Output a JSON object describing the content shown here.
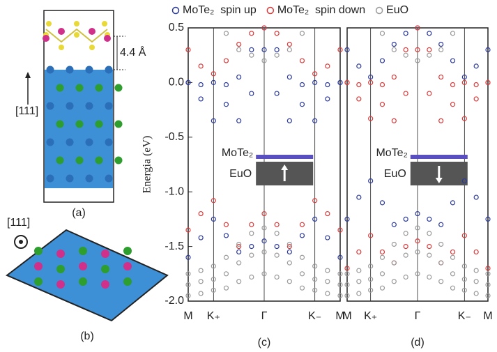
{
  "figure": {
    "distance": "4.4 Å",
    "direction_a": "[111]",
    "direction_b": "[111]",
    "label_a": "(a)",
    "label_b": "(b)"
  },
  "chart_data": [
    {
      "type": "scatter",
      "title": "(c)",
      "ylabel": "Energia (eV)",
      "x": [
        0,
        0.5,
        1,
        1.5,
        2,
        2.5,
        3,
        3.5,
        4,
        4.5,
        5,
        5.5,
        6
      ],
      "xlim": [
        0,
        6
      ],
      "xticks": [
        {
          "value": 0,
          "label": "M"
        },
        {
          "value": 1,
          "label": "K₊"
        },
        {
          "value": 3,
          "label": "Γ"
        },
        {
          "value": 5,
          "label": "K₋"
        },
        {
          "value": 6,
          "label": "M"
        }
      ],
      "ylim": [
        -2.0,
        0.5
      ],
      "yticks": [
        {
          "value": -2.0,
          "label": "-2.0"
        },
        -1.5,
        {
          "value": -1.0,
          "label": "-1.0"
        },
        -0.5,
        {
          "value": 0.0,
          "label": "0.0"
        },
        0.5
      ],
      "inset_labels": [
        "MoTe₂",
        "EuO"
      ],
      "inset_spin": "up",
      "series": [
        {
          "name": "MoTe₂  spin up",
          "color": "#2b3a9b",
          "values": [
            [
              -1.6,
              -1.42,
              -1.25,
              -1.4,
              -1.55,
              -1.5,
              -1.45,
              -1.5,
              -1.55,
              -1.4,
              -1.25,
              -1.42,
              -1.6
            ],
            [
              0.0,
              -0.15,
              -0.35,
              -0.2,
              -0.35,
              -0.1,
              0.3,
              -0.1,
              -0.35,
              -0.2,
              -0.35,
              -0.15,
              0.0
            ],
            [
              0.0,
              -0.02,
              0.0,
              -0.02,
              0.05,
              0.3,
              0.5,
              0.3,
              0.05,
              -0.02,
              0.0,
              -0.02,
              0.0
            ]
          ]
        },
        {
          "name": "MoTe₂  spin down",
          "color": "#d93a3a",
          "values": [
            [
              -1.35,
              -1.2,
              -1.08,
              -1.3,
              -1.5,
              -1.3,
              -1.2,
              -1.3,
              -1.5,
              -1.3,
              -1.08,
              -1.2,
              -1.35
            ],
            [
              0.3,
              0.15,
              0.08,
              0.2,
              0.35,
              0.45,
              0.5,
              0.45,
              0.35,
              0.2,
              0.08,
              0.15,
              0.3
            ]
          ]
        },
        {
          "name": "EuO",
          "color": "#9a9a9a",
          "values": [
            [
              -1.75,
              -1.72,
              -1.68,
              -1.6,
              -1.48,
              -1.38,
              -1.33,
              -1.38,
              -1.48,
              -1.6,
              -1.68,
              -1.72,
              -1.75
            ],
            [
              -1.85,
              -1.82,
              -1.8,
              -1.75,
              -1.65,
              -1.58,
              -1.55,
              -1.58,
              -1.65,
              -1.75,
              -1.8,
              -1.82,
              -1.85
            ],
            [
              -1.95,
              -1.93,
              -1.9,
              -1.88,
              -1.82,
              -1.78,
              -1.75,
              -1.78,
              -1.82,
              -1.88,
              -1.9,
              -1.93,
              -1.95
            ],
            [
              null,
              null,
              null,
              0.45,
              0.3,
              0.25,
              0.2,
              0.25,
              0.3,
              0.45,
              null,
              null,
              null
            ]
          ]
        }
      ]
    },
    {
      "type": "scatter",
      "title": "(d)",
      "x": [
        0,
        0.5,
        1,
        1.5,
        2,
        2.5,
        3,
        3.5,
        4,
        4.5,
        5,
        5.5,
        6
      ],
      "xlim": [
        0,
        6
      ],
      "xticks": [
        {
          "value": 0,
          "label": "M"
        },
        {
          "value": 1,
          "label": "K₊"
        },
        {
          "value": 3,
          "label": "Γ"
        },
        {
          "value": 5,
          "label": "K₋"
        },
        {
          "value": 6,
          "label": "M"
        }
      ],
      "ylim": [
        -2.0,
        0.5
      ],
      "inset_labels": [
        "MoTe₂",
        "EuO"
      ],
      "inset_spin": "down",
      "series": [
        {
          "color": "#2b3a9b",
          "values": [
            [
              -1.25,
              -1.05,
              -0.9,
              -1.1,
              -1.3,
              -1.25,
              -1.2,
              -1.25,
              -1.3,
              -1.1,
              -0.9,
              -1.05,
              -1.25
            ],
            [
              0.3,
              0.15,
              0.05,
              0.2,
              0.35,
              0.45,
              0.5,
              0.45,
              0.35,
              0.2,
              0.05,
              0.15,
              0.3
            ]
          ]
        },
        {
          "color": "#d93a3a",
          "values": [
            [
              -1.7,
              -1.55,
              -1.4,
              -1.55,
              -1.65,
              -1.5,
              -1.45,
              -1.5,
              -1.65,
              -1.55,
              -1.4,
              -1.55,
              -1.7
            ],
            [
              0.0,
              -0.15,
              -0.33,
              -0.2,
              -0.35,
              -0.1,
              0.3,
              -0.1,
              -0.35,
              -0.2,
              -0.33,
              -0.15,
              0.0
            ],
            [
              0.0,
              -0.02,
              0.0,
              -0.02,
              0.05,
              0.3,
              0.5,
              0.3,
              0.05,
              -0.02,
              0.0,
              -0.02,
              0.0
            ]
          ]
        },
        {
          "color": "#9a9a9a",
          "values": [
            [
              -1.75,
              -1.72,
              -1.68,
              -1.6,
              -1.48,
              -1.38,
              -1.33,
              -1.38,
              -1.48,
              -1.6,
              -1.68,
              -1.72,
              -1.75
            ],
            [
              -1.85,
              -1.82,
              -1.8,
              -1.75,
              -1.65,
              -1.58,
              -1.55,
              -1.58,
              -1.65,
              -1.75,
              -1.8,
              -1.82,
              -1.85
            ],
            [
              -1.95,
              -1.93,
              -1.9,
              -1.88,
              -1.82,
              -1.78,
              -1.75,
              -1.78,
              -1.82,
              -1.88,
              -1.9,
              -1.93,
              -1.95
            ],
            [
              null,
              null,
              null,
              0.45,
              0.3,
              0.25,
              0.2,
              0.25,
              0.3,
              0.45,
              null,
              null,
              null
            ]
          ]
        }
      ]
    }
  ]
}
